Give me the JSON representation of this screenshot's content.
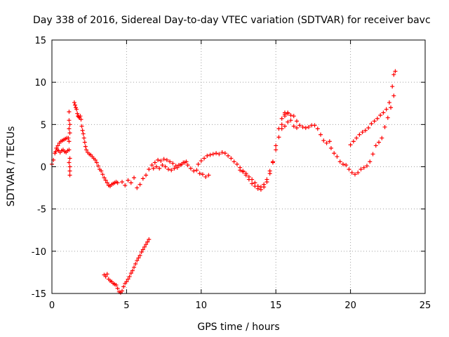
{
  "chart_data": {
    "type": "scatter",
    "title": "Day 338 of 2016, Sidereal Day-to-day VTEC variation (SDTVAR) for receiver bavc",
    "xlabel": "GPS time / hours",
    "ylabel": "SDTVAR / TECUs",
    "xlim": [
      0,
      25
    ],
    "ylim": [
      -15,
      15
    ],
    "xticks": [
      "0",
      "5",
      "10",
      "15",
      "20",
      "25"
    ],
    "yticks": [
      "15",
      "10",
      "5",
      "0",
      "-5",
      "-10",
      "-15"
    ],
    "grid": true,
    "marker": "+",
    "color": "#ff0000",
    "series": [
      {
        "name": "main",
        "x": [
          0.0,
          0.1,
          0.2,
          0.3,
          0.4,
          0.5,
          0.6,
          0.7,
          0.8,
          0.9,
          1.0,
          1.1
        ],
        "y": [
          0.3,
          0.8,
          1.6,
          2.2,
          2.5,
          2.8,
          3.0,
          3.1,
          3.2,
          3.3,
          3.4,
          3.4
        ]
      },
      {
        "name": "main",
        "x": [
          0.25,
          0.35,
          0.45,
          0.55,
          0.65,
          0.75,
          0.85,
          0.95,
          1.05
        ],
        "y": [
          1.8,
          2.0,
          1.9,
          1.7,
          1.9,
          2.0,
          1.8,
          1.7,
          1.9
        ]
      },
      {
        "name": "main",
        "x": [
          1.15,
          1.15,
          1.15,
          1.15,
          1.15,
          1.15,
          1.2,
          1.2,
          1.2,
          1.2,
          1.2,
          1.2
        ],
        "y": [
          6.5,
          5.5,
          4.5,
          3.0,
          2.0,
          0.5,
          0.0,
          -0.5,
          -1.0,
          1.0,
          4.0,
          5.0
        ]
      },
      {
        "name": "main",
        "x": [
          1.5,
          1.55,
          1.6,
          1.65,
          1.7,
          1.75,
          1.8,
          1.85,
          1.9,
          1.95,
          2.0,
          2.05,
          2.1,
          2.15,
          2.2,
          2.25,
          2.3,
          2.4,
          2.5,
          2.6,
          2.7,
          2.8,
          2.9,
          3.0,
          3.1,
          3.2,
          3.3,
          3.4,
          3.5,
          3.6,
          3.7,
          3.8,
          3.9,
          4.0,
          4.1,
          4.2,
          4.3,
          4.4
        ],
        "y": [
          7.6,
          7.3,
          7.0,
          6.8,
          6.3,
          6.0,
          5.9,
          5.8,
          6.0,
          5.6,
          4.8,
          4.3,
          3.9,
          3.4,
          2.9,
          2.4,
          2.0,
          1.7,
          1.5,
          1.4,
          1.2,
          1.0,
          0.8,
          0.5,
          0.1,
          -0.3,
          -0.5,
          -0.9,
          -1.3,
          -1.6,
          -1.9,
          -2.2,
          -2.3,
          -2.1,
          -2.0,
          -1.9,
          -1.8,
          -1.9
        ]
      },
      {
        "name": "main",
        "x": [
          4.7,
          4.9,
          5.1,
          5.3,
          5.5,
          5.7,
          5.9,
          6.1,
          6.3,
          6.5,
          6.7,
          6.9,
          7.1,
          7.3,
          7.5,
          7.7,
          7.9,
          8.1,
          8.3,
          8.5,
          8.7,
          8.9,
          9.1,
          9.3,
          9.5,
          9.7,
          9.9,
          10.1,
          10.3,
          10.5
        ],
        "y": [
          -1.8,
          -2.2,
          -1.6,
          -1.9,
          -1.3,
          -2.5,
          -2.1,
          -1.4,
          -1.0,
          -0.3,
          0.2,
          0.5,
          0.8,
          0.7,
          0.9,
          0.8,
          0.6,
          0.4,
          0.1,
          0.2,
          0.3,
          0.5,
          0.2,
          -0.2,
          -0.5,
          -0.4,
          -0.8,
          -0.9,
          -1.2,
          -1.0
        ]
      },
      {
        "name": "main",
        "x": [
          6.8,
          7.0,
          7.2,
          7.4,
          7.6,
          7.8,
          8.0,
          8.2,
          8.4,
          8.6,
          8.8,
          9.0
        ],
        "y": [
          -0.2,
          0.0,
          -0.2,
          0.2,
          0.0,
          -0.3,
          -0.4,
          -0.2,
          -0.1,
          0.2,
          0.5,
          0.6
        ]
      },
      {
        "name": "main",
        "x": [
          9.8,
          10.0,
          10.2,
          10.4,
          10.6,
          10.8,
          11.0,
          11.2,
          11.4,
          11.6,
          11.8,
          12.0,
          12.2,
          12.4,
          12.6,
          12.8,
          13.0,
          13.2,
          13.4,
          13.6,
          13.8,
          14.0,
          14.2,
          14.4,
          14.6,
          14.8,
          15.0,
          15.2,
          15.4,
          15.6,
          15.8
        ],
        "y": [
          0.3,
          0.7,
          1.0,
          1.3,
          1.4,
          1.5,
          1.6,
          1.5,
          1.7,
          1.6,
          1.3,
          1.0,
          0.6,
          0.3,
          -0.1,
          -0.5,
          -0.8,
          -1.2,
          -1.5,
          -1.9,
          -2.3,
          -2.4,
          -2.1,
          -1.5,
          -0.5,
          0.6,
          2.0,
          3.5,
          5.0,
          6.0,
          6.4
        ]
      },
      {
        "name": "main",
        "x": [
          12.6,
          12.8,
          13.0,
          13.2,
          13.4,
          13.6,
          13.8,
          14.0,
          14.2,
          14.4,
          14.6,
          14.8,
          15.0,
          15.2,
          15.4,
          15.6
        ],
        "y": [
          -0.4,
          -0.6,
          -1.0,
          -1.5,
          -2.0,
          -2.3,
          -2.6,
          -2.7,
          -2.4,
          -1.8,
          -0.8,
          0.5,
          2.5,
          4.5,
          5.7,
          6.2
        ]
      },
      {
        "name": "main",
        "x": [
          15.6,
          15.8,
          16.0,
          16.2,
          16.4,
          16.6,
          16.8,
          17.0,
          17.2,
          17.4,
          17.6,
          17.8,
          18.0,
          18.2,
          18.4,
          18.6
        ],
        "y": [
          6.4,
          6.3,
          6.1,
          6.0,
          5.4,
          4.9,
          4.7,
          4.6,
          4.7,
          4.9,
          4.9,
          4.5,
          3.8,
          3.1,
          2.8,
          3.0
        ]
      },
      {
        "name": "main",
        "x": [
          15.4,
          15.6,
          15.8,
          16.0,
          16.2,
          16.4
        ],
        "y": [
          4.5,
          4.8,
          5.3,
          5.5,
          4.8,
          4.6
        ]
      },
      {
        "name": "main",
        "x": [
          18.7,
          18.9,
          19.1,
          19.3,
          19.5,
          19.7,
          19.9,
          20.1,
          20.3,
          20.5,
          20.7,
          20.9,
          21.1,
          21.3,
          21.5,
          21.7,
          21.9,
          22.1,
          22.3,
          22.5,
          22.7,
          22.9
        ],
        "y": [
          2.2,
          1.6,
          1.2,
          0.6,
          0.3,
          0.2,
          -0.3,
          -0.7,
          -0.9,
          -0.7,
          -0.3,
          -0.1,
          0.1,
          0.6,
          1.5,
          2.5,
          2.9,
          3.4,
          4.7,
          5.8,
          7.0,
          8.4
        ]
      },
      {
        "name": "main",
        "x": [
          20.0,
          20.2,
          20.4,
          20.6,
          20.8,
          21.0,
          21.2,
          21.4,
          21.6,
          21.8,
          22.0,
          22.2,
          22.4,
          22.6,
          22.8,
          22.9,
          23.0
        ],
        "y": [
          2.6,
          3.0,
          3.4,
          3.8,
          4.1,
          4.3,
          4.6,
          5.1,
          5.4,
          5.7,
          6.1,
          6.4,
          6.8,
          7.6,
          9.5,
          10.9,
          11.3
        ]
      },
      {
        "name": "low",
        "x": [
          3.5,
          3.6,
          3.7,
          3.8,
          3.9,
          4.0,
          4.1,
          4.2,
          4.3,
          4.4,
          4.5,
          4.6,
          4.7,
          4.8,
          4.9,
          5.0,
          5.1,
          5.2,
          5.3,
          5.4,
          5.5,
          5.6,
          5.7,
          5.8,
          5.9,
          6.0,
          6.1,
          6.2,
          6.3,
          6.4,
          6.5
        ],
        "y": [
          -12.8,
          -13.0,
          -12.7,
          -13.3,
          -13.5,
          -13.6,
          -13.8,
          -13.9,
          -14.0,
          -14.4,
          -14.8,
          -14.9,
          -14.7,
          -14.2,
          -13.8,
          -13.6,
          -13.3,
          -13.0,
          -12.6,
          -12.3,
          -11.9,
          -11.5,
          -11.1,
          -10.8,
          -10.5,
          -10.1,
          -9.8,
          -9.5,
          -9.2,
          -8.9,
          -8.6
        ]
      }
    ]
  }
}
